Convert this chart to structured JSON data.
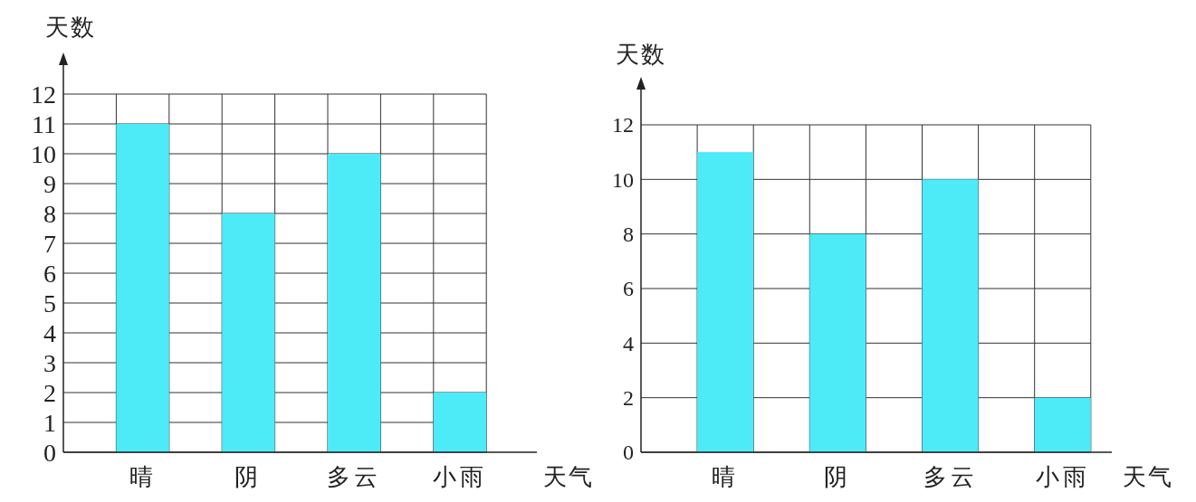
{
  "chart_data": [
    {
      "type": "bar",
      "categories": [
        "晴",
        "阴",
        "多云",
        "小雨"
      ],
      "values": [
        11,
        8,
        10,
        2
      ],
      "color": "#4deaf8",
      "xlabel": "天气",
      "ylabel": "天数",
      "ylim": [
        0,
        12
      ],
      "yticks": [
        0,
        1,
        2,
        3,
        4,
        5,
        6,
        7,
        8,
        9,
        10,
        11,
        12
      ],
      "grid": true
    },
    {
      "type": "bar",
      "categories": [
        "晴",
        "阴",
        "多云",
        "小雨"
      ],
      "values": [
        11,
        8,
        10,
        2
      ],
      "color": "#4deaf8",
      "xlabel": "天气",
      "ylabel": "天数",
      "ylim": [
        0,
        12
      ],
      "yticks": [
        0,
        2,
        4,
        6,
        8,
        10,
        12
      ],
      "grid": true
    }
  ]
}
